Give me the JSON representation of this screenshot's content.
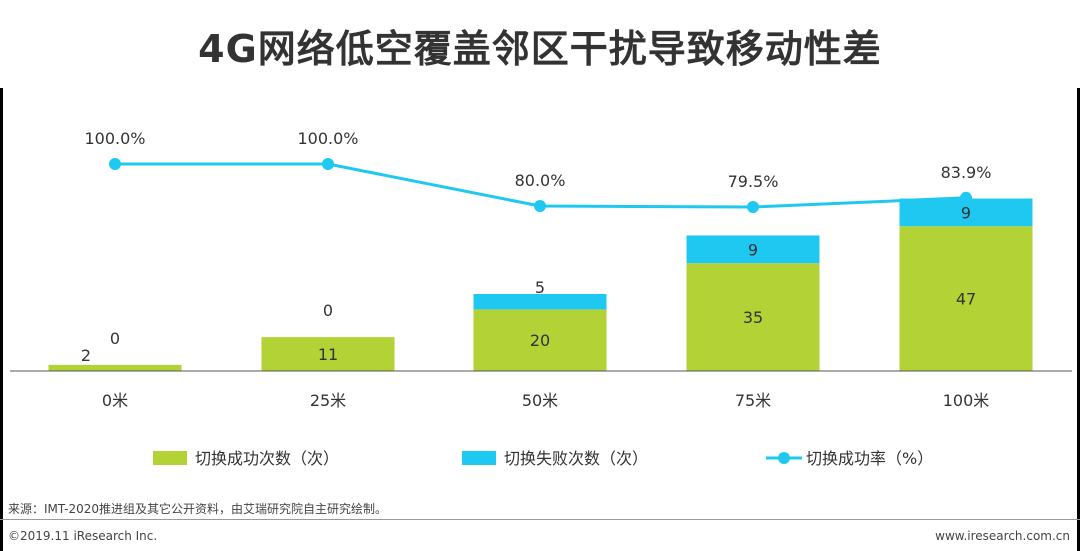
{
  "title": "4G网络低空覆盖邻区干扰导致移动性差",
  "chart_data": {
    "type": "bar",
    "stacked": true,
    "categories": [
      "0米",
      "25米",
      "50米",
      "75米",
      "100米"
    ],
    "series": [
      {
        "name": "切换成功次数（次）",
        "kind": "bar",
        "color": "#b2d235",
        "values": [
          2,
          11,
          20,
          35,
          47
        ],
        "labels": [
          "2",
          "11",
          "20",
          "35",
          "47"
        ]
      },
      {
        "name": "切换失败次数（次）",
        "kind": "bar",
        "color": "#1fc8f0",
        "values": [
          0,
          0,
          5,
          9,
          9
        ],
        "labels": [
          "0",
          "0",
          "5",
          "9",
          "9"
        ]
      },
      {
        "name": "切换成功率（%）",
        "kind": "line",
        "color": "#1fc8f0",
        "values": [
          100.0,
          100.0,
          80.0,
          79.5,
          83.9
        ],
        "labels": [
          "100.0%",
          "100.0%",
          "80.0%",
          "79.5%",
          "83.9%"
        ]
      }
    ],
    "legend_position": "bottom"
  },
  "source": "来源：IMT-2020推进组及其它公开资料，由艾瑞研究院自主研究绘制。",
  "copyright": "©2019.11 iResearch Inc.",
  "website": "www.iresearch.com.cn"
}
